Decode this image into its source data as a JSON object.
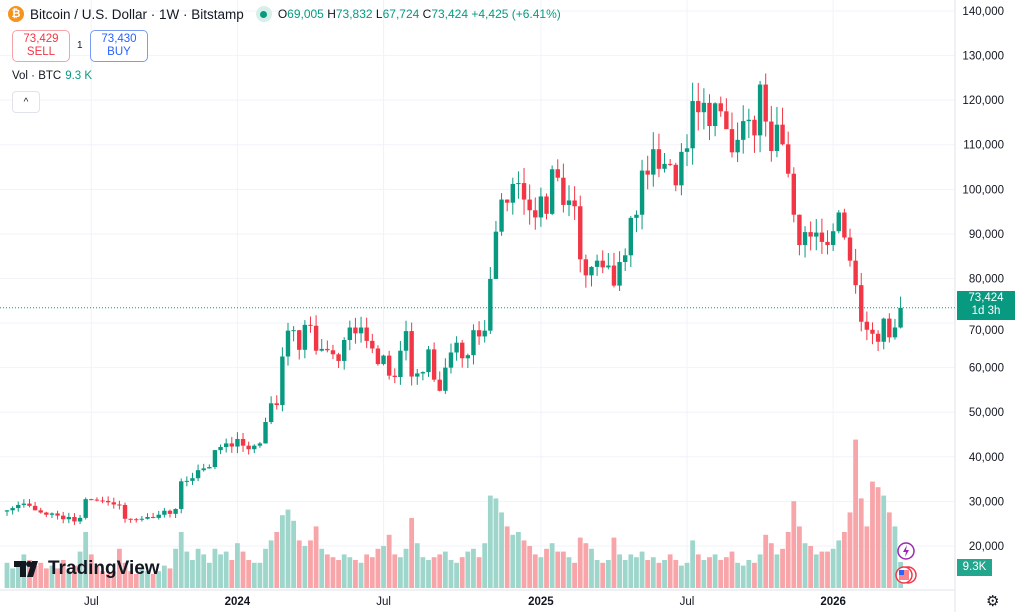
{
  "header": {
    "title": "Bitcoin / U.S. Dollar · 1W · Bitstamp",
    "coin_icon": "bitcoin-icon",
    "open_label": "O",
    "open": "69,005",
    "high_label": "H",
    "high": "73,832",
    "low_label": "L",
    "low": "67,724",
    "close_label": "C",
    "close": "73,424",
    "change": "+4,425 (+6.41%)"
  },
  "trade": {
    "sell_price": "73,429",
    "sell_label": "SELL",
    "buy_price": "73,430",
    "buy_label": "BUY",
    "quantity": "1"
  },
  "volume_legend": {
    "label": "Vol · BTC",
    "value": "9.3 K"
  },
  "collapse_icon": "chevron-up-icon",
  "logo": "TradingView",
  "price_label": {
    "price": "73,424",
    "countdown": "1d 3h"
  },
  "volume_label": "9.3K",
  "colors": {
    "up": "#089981",
    "down": "#f23645",
    "up_vol": "#9fd6cc",
    "down_vol": "#f8a5a9"
  },
  "chart_data": {
    "type": "candlestick",
    "title": "Bitcoin / U.S. Dollar · 1W · Bitstamp",
    "yticks": [
      "20,000",
      "30,000",
      "40,000",
      "50,000",
      "60,000",
      "70,000",
      "80,000",
      "90,000",
      "100,000",
      "110,000",
      "120,000",
      "130,000",
      "140,000"
    ],
    "ylim": [
      20000,
      140000
    ],
    "xticks": [
      {
        "label": "Jul",
        "index": 15
      },
      {
        "label": "2024",
        "index": 41
      },
      {
        "label": "Jul",
        "index": 67
      },
      {
        "label": "2025",
        "index": 95
      },
      {
        "label": "Jul",
        "index": 121
      },
      {
        "label": "2026",
        "index": 147
      }
    ],
    "close_thousands": [
      28,
      28.5,
      29.2,
      29.5,
      29,
      28,
      27.5,
      27,
      27.3,
      26.8,
      26,
      26.5,
      25.5,
      26.3,
      30.5,
      30.4,
      30.2,
      30.1,
      29.8,
      29.3,
      29.2,
      26.1,
      26.0,
      25.9,
      26.1,
      26.5,
      26.3,
      27.0,
      27.9,
      27.2,
      28.3,
      34.5,
      34.6,
      35.2,
      37.0,
      37.4,
      37.7,
      41.5,
      42.2,
      43.0,
      42.3,
      44.0,
      42.5,
      41.7,
      42.5,
      43.0,
      47.8,
      52.0,
      51.6,
      62.5,
      68.3,
      68.4,
      64.0,
      69.6,
      69.4,
      63.8,
      64.2,
      63.9,
      63.0,
      61.5,
      66.2,
      69.0,
      67.7,
      69.0,
      66.0,
      64.3,
      60.8,
      62.7,
      58.2,
      57.9,
      63.8,
      68.2,
      58.0,
      58.7,
      59.0,
      64.1,
      57.3,
      54.8,
      60.0,
      63.4,
      65.6,
      62.1,
      62.8,
      68.4,
      67.0,
      68.3,
      79.9,
      90.5,
      97.7,
      97.0,
      101.2,
      101.4,
      97.7,
      95.3,
      93.7,
      98.4,
      94.5,
      104.5,
      102.6,
      96.5,
      97.5,
      96.2,
      84.3,
      80.7,
      82.6,
      84.0,
      82.5,
      82.9,
      78.4,
      83.7,
      85.2,
      93.6,
      94.3,
      104.2,
      103.3,
      109.0,
      104.6,
      105.7,
      105.5,
      100.9,
      108.4,
      109.2,
      119.8,
      117.3,
      119.4,
      114.2,
      119.3,
      117.5,
      113.5,
      108.3,
      111.1,
      115.3,
      115.6,
      112.1,
      123.5,
      115.2,
      108.6,
      114.5,
      110.1,
      103.5,
      94.3,
      87.5,
      90.4,
      89.4,
      90.3,
      88.2,
      87.5,
      90.6,
      94.8,
      89.2,
      84.0,
      78.5,
      70.3,
      68.5,
      67.6,
      65.8,
      71.0,
      66.8,
      69.005,
      73.424
    ],
    "volume_thousands": [
      9,
      7,
      8,
      12,
      10,
      8,
      9,
      7,
      8,
      7,
      10,
      6,
      8,
      13,
      20,
      12,
      8,
      6,
      5,
      6,
      14,
      9,
      6,
      5,
      7,
      6,
      5,
      6,
      8,
      7,
      14,
      20,
      13,
      10,
      14,
      12,
      9,
      14,
      12,
      13,
      10,
      16,
      13,
      10,
      9,
      9,
      14,
      17,
      20,
      26,
      28,
      24,
      17,
      15,
      17,
      22,
      14,
      12,
      11,
      10,
      12,
      11,
      10,
      9,
      12,
      11,
      14,
      15,
      19,
      12,
      11,
      14,
      25,
      16,
      11,
      10,
      11,
      12,
      13,
      10,
      9,
      11,
      13,
      14,
      11,
      16,
      33,
      32,
      27,
      22,
      19,
      20,
      17,
      15,
      12,
      11,
      14,
      16,
      13,
      13,
      11,
      9,
      18,
      16,
      14,
      10,
      9,
      10,
      18,
      12,
      10,
      12,
      11,
      13,
      10,
      11,
      9,
      10,
      12,
      10,
      8,
      9,
      17,
      12,
      10,
      11,
      12,
      10,
      11,
      13,
      9,
      8,
      10,
      9,
      12,
      19,
      16,
      12,
      14,
      20,
      31,
      22,
      16,
      15,
      12,
      13,
      13,
      14,
      17,
      20,
      27,
      53,
      32,
      22,
      38,
      36,
      33,
      27,
      22,
      9.3
    ],
    "last_price": 73424
  }
}
